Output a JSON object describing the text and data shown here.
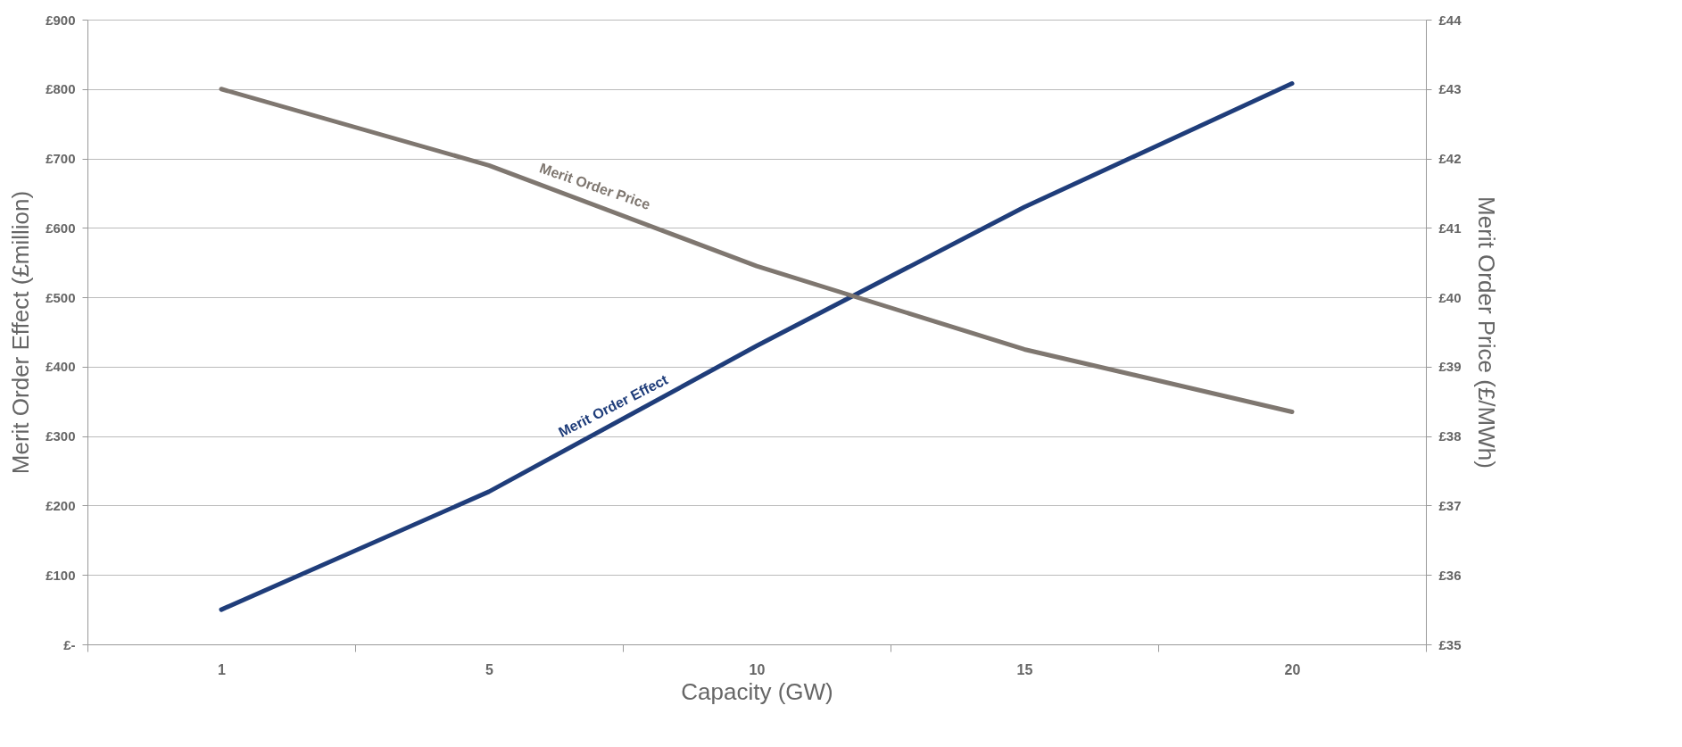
{
  "chart_data": {
    "type": "line",
    "xlabel": "Capacity (GW)",
    "ylabel": "Merit Order Effect (£million)",
    "y2label": "Merit Order Price (£/MWh)",
    "categories": [
      "1",
      "5",
      "10",
      "15",
      "20"
    ],
    "series": [
      {
        "name": "Merit Order Effect",
        "color": "#1f3d7a",
        "values": [
          50,
          220,
          430,
          630,
          808
        ]
      },
      {
        "name": "Merit Order Price",
        "color": "#7f7770",
        "axis": "y2",
        "values": [
          43.0,
          41.9,
          40.45,
          39.25,
          38.35
        ]
      }
    ],
    "ylim": [
      0,
      900
    ],
    "yticks": [
      {
        "value": 0,
        "label": "£-"
      },
      {
        "value": 100,
        "label": "£100"
      },
      {
        "value": 200,
        "label": "£200"
      },
      {
        "value": 300,
        "label": "£300"
      },
      {
        "value": 400,
        "label": "£400"
      },
      {
        "value": 500,
        "label": "£500"
      },
      {
        "value": 600,
        "label": "£600"
      },
      {
        "value": 700,
        "label": "£700"
      },
      {
        "value": 800,
        "label": "£800"
      },
      {
        "value": 900,
        "label": "£900"
      }
    ],
    "y2lim": [
      35,
      44
    ],
    "y2ticks": [
      {
        "value": 35,
        "label": "£35"
      },
      {
        "value": 36,
        "label": "£36"
      },
      {
        "value": 37,
        "label": "£37"
      },
      {
        "value": 38,
        "label": "£38"
      },
      {
        "value": 39,
        "label": "£39"
      },
      {
        "value": 40,
        "label": "£40"
      },
      {
        "value": 41,
        "label": "£41"
      },
      {
        "value": 42,
        "label": "£42"
      },
      {
        "value": 43,
        "label": "£43"
      },
      {
        "value": 44,
        "label": "£44"
      }
    ],
    "grid": "y",
    "marker": "none",
    "line_style": "solid"
  }
}
